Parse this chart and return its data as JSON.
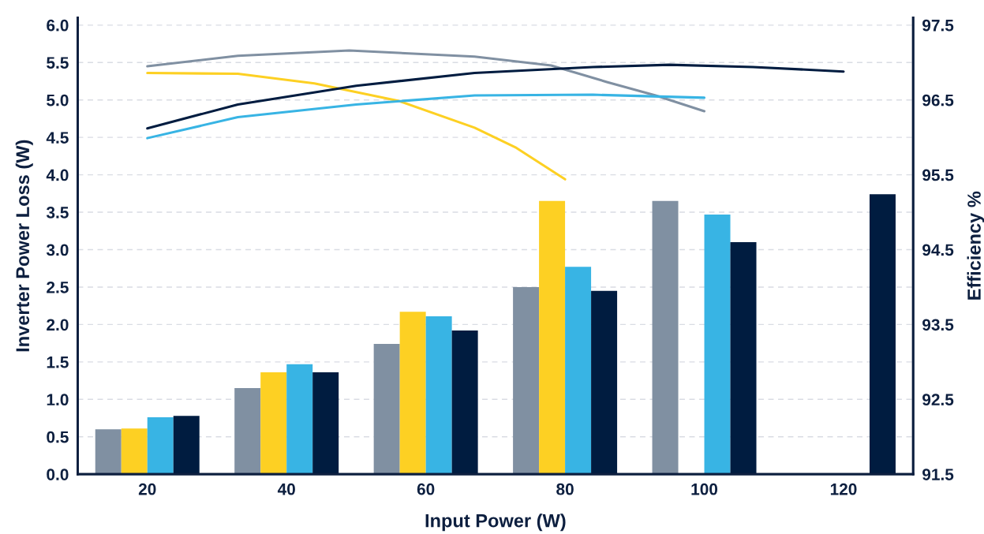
{
  "chart_data": {
    "type": "bar",
    "xlabel": "Input Power (W)",
    "ylabel": "Inverter Power Loss (W)",
    "y2label": "Efficiency %",
    "x": [
      20,
      40,
      60,
      80,
      100,
      120
    ],
    "xlim": [
      10,
      130
    ],
    "xticks": [
      20,
      40,
      60,
      80,
      100,
      120
    ],
    "ylim": [
      0,
      6.1
    ],
    "yticks": [
      {
        "value": 0,
        "label": "0.0"
      },
      0.5,
      {
        "value": 1,
        "label": "1.0"
      },
      1.5,
      {
        "value": 2,
        "label": "2.0"
      },
      2.5,
      {
        "value": 3,
        "label": "3.0"
      },
      3.5,
      {
        "value": 4,
        "label": "4.0"
      },
      4.5,
      {
        "value": 5,
        "label": "5.0"
      },
      5.5,
      {
        "value": 6,
        "label": "6.0"
      }
    ],
    "y2lim": [
      91.5,
      97.6
    ],
    "y2ticks": [
      91.5,
      92.5,
      93.5,
      94.5,
      95.5,
      96.5,
      97.5
    ],
    "grid": "y",
    "series": [
      {
        "color": "#8090a2",
        "values": [
          0.6,
          1.15,
          1.74,
          2.5,
          3.65,
          null
        ]
      },
      {
        "color": "#fdd023",
        "values": [
          0.61,
          1.36,
          2.17,
          3.65,
          null,
          null
        ]
      },
      {
        "color": "#38b4e4",
        "values": [
          0.76,
          1.47,
          2.11,
          2.77,
          3.47,
          null
        ]
      },
      {
        "color": "#001c40",
        "values": [
          0.78,
          1.36,
          1.92,
          2.45,
          3.1,
          3.74
        ]
      },
      {
        "type": "line",
        "axis": "y2",
        "color": "#8090a2",
        "x": [
          20,
          33,
          49,
          67,
          78,
          86,
          93,
          100
        ],
        "values": [
          96.95,
          97.09,
          97.16,
          97.08,
          96.96,
          96.74,
          96.56,
          96.35
        ]
      },
      {
        "type": "line",
        "axis": "y2",
        "color": "#fdd023",
        "x": [
          20,
          33,
          44,
          56,
          67,
          73,
          80
        ],
        "values": [
          96.86,
          96.85,
          96.72,
          96.49,
          96.13,
          95.86,
          95.44
        ]
      },
      {
        "type": "line",
        "axis": "y2",
        "color": "#38b4e4",
        "x": [
          20,
          33,
          50,
          67,
          84,
          100
        ],
        "values": [
          95.99,
          96.27,
          96.44,
          96.56,
          96.57,
          96.53
        ]
      },
      {
        "type": "line",
        "axis": "y2",
        "color": "#001c40",
        "x": [
          20,
          33,
          50,
          67,
          84,
          95,
          107,
          120
        ],
        "values": [
          96.12,
          96.44,
          96.69,
          96.86,
          96.94,
          96.97,
          96.94,
          96.88
        ]
      }
    ]
  }
}
